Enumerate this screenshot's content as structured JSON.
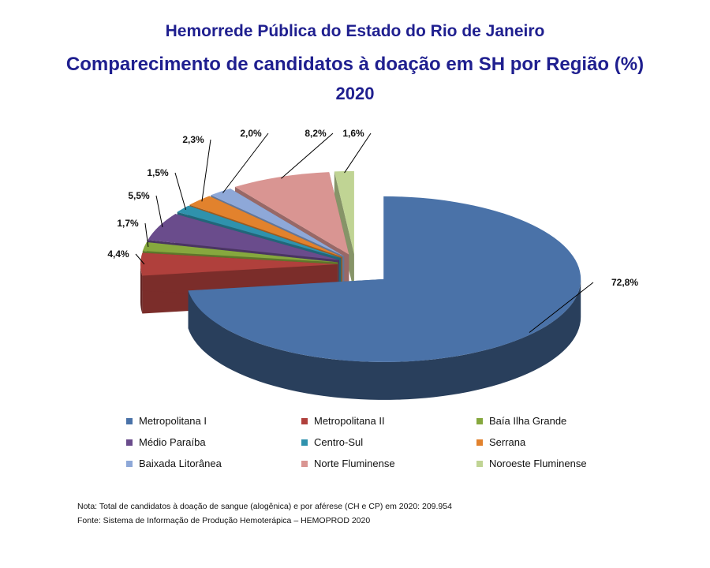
{
  "titles": {
    "line1": "Hemorrede Pública do Estado do Rio de Janeiro",
    "line2": "Comparecimento de candidatos à doação em SH por Região (%)",
    "line3": "2020"
  },
  "chart_data": {
    "type": "pie",
    "style": "3d-exploded",
    "title": "Comparecimento de candidatos à doação em SH por Região (%)",
    "legend_placement": "bottom",
    "slices": [
      {
        "name": "Metropolitana I",
        "value": 72.8,
        "label": "72,8%",
        "color": "#4a72a8"
      },
      {
        "name": "Metropolitana II",
        "value": 4.4,
        "label": "4,4%",
        "color": "#b0403c"
      },
      {
        "name": "Baía Ilha Grande",
        "value": 1.7,
        "label": "1,7%",
        "color": "#86a83e"
      },
      {
        "name": "Médio Paraíba",
        "value": 5.5,
        "label": "5,5%",
        "color": "#6a4c8c"
      },
      {
        "name": "Centro-Sul",
        "value": 1.5,
        "label": "1,5%",
        "color": "#2f92ad"
      },
      {
        "name": "Serrana",
        "value": 2.3,
        "label": "2,3%",
        "color": "#e2822d"
      },
      {
        "name": "Baixada Litorânea",
        "value": 2.0,
        "label": "2,0%",
        "color": "#8ea8d8"
      },
      {
        "name": "Norte Fluminense",
        "value": 8.2,
        "label": "8,2%",
        "color": "#d99592"
      },
      {
        "name": "Noroeste Fluminense",
        "value": 1.6,
        "label": "1,6%",
        "color": "#c0d494"
      }
    ]
  },
  "notes": {
    "nota": "Nota: Total de candidatos à doação de sangue (alogênica) e por aférese (CH e CP) em 2020: 209.954",
    "fonte": "Fonte: Sistema de Informação de Produção Hemoterápica – HEMOPROD 2020"
  }
}
